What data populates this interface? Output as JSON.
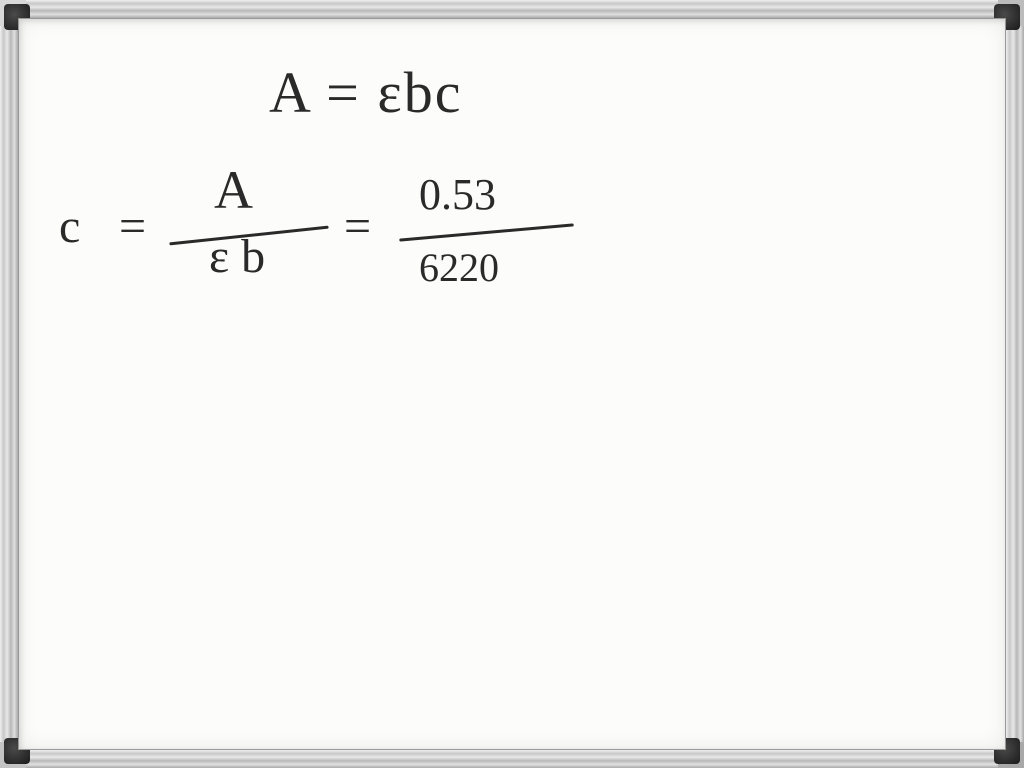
{
  "whiteboard": {
    "equation1": "A = εbc",
    "equation2": {
      "lhs_var": "c",
      "equals1": "=",
      "frac1_num": "A",
      "frac1_den": "ε b",
      "equals2": "=",
      "frac2_num": "0.53",
      "frac2_den": "6220"
    },
    "colors": {
      "ink": "#2a2a2a",
      "board": "#fcfcfa",
      "frame_light": "#e8e8e8",
      "frame_dark": "#a0a0a0",
      "corner": "#1a1a1a"
    },
    "font": {
      "family": "handwritten",
      "size_main_pt": 44,
      "size_sub_pt": 40
    }
  }
}
